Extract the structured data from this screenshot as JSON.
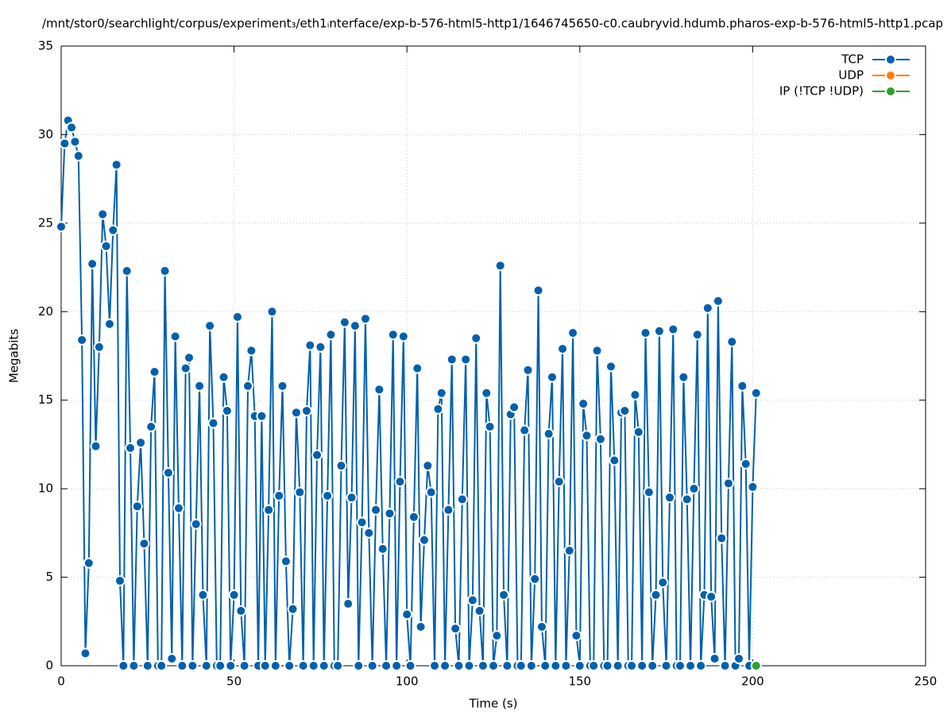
{
  "chart_data": {
    "type": "line",
    "title": "/mnt/stor0/searchlight/corpus/experiment₃/eth1ᵢnterface/exp-b-576-html5-http1/1646745650-c0.caubryvid.hdumb.pharos-exp-b-576-html5-http1.pcap",
    "x_label": "Time (s)",
    "y_label": "Megabits",
    "xlim": [
      0,
      250
    ],
    "xticks": [
      0,
      50,
      100,
      150,
      200,
      250
    ],
    "ylim": [
      0,
      35
    ],
    "yticks": [
      0,
      5,
      10,
      15,
      20,
      25,
      30,
      35
    ],
    "grid": true,
    "legend": "top-right",
    "series": [
      {
        "name": "TCP",
        "color": "#0060ad",
        "x": [
          0,
          1,
          2,
          3,
          4,
          5,
          6,
          7,
          8,
          9,
          10,
          11,
          12,
          13,
          14,
          15,
          16,
          17,
          18,
          19,
          20,
          21,
          22,
          23,
          24,
          25,
          26,
          27,
          28,
          29,
          30,
          31,
          32,
          33,
          34,
          35,
          36,
          37,
          38,
          39,
          40,
          41,
          42,
          43,
          44,
          45,
          46,
          47,
          48,
          49,
          50,
          51,
          52,
          53,
          54,
          55,
          56,
          57,
          58,
          59,
          60,
          61,
          62,
          63,
          64,
          65,
          66,
          67,
          68,
          69,
          70,
          71,
          72,
          73,
          74,
          75,
          76,
          77,
          78,
          79,
          80,
          81,
          82,
          83,
          84,
          85,
          86,
          87,
          88,
          89,
          90,
          91,
          92,
          93,
          94,
          95,
          96,
          97,
          98,
          99,
          100,
          101,
          102,
          103,
          104,
          105,
          106,
          107,
          108,
          109,
          110,
          111,
          112,
          113,
          114,
          115,
          116,
          117,
          118,
          119,
          120,
          121,
          122,
          123,
          124,
          125,
          126,
          127,
          128,
          129,
          130,
          131,
          132,
          133,
          134,
          135,
          136,
          137,
          138,
          139,
          140,
          141,
          142,
          143,
          144,
          145,
          146,
          147,
          148,
          149,
          150,
          151,
          152,
          153,
          154,
          155,
          156,
          157,
          158,
          159,
          160,
          161,
          162,
          163,
          164,
          165,
          166,
          167,
          168,
          169,
          170,
          171,
          172,
          173,
          174,
          175,
          176,
          177,
          178,
          179,
          180,
          181,
          182,
          183,
          184,
          185,
          186,
          187,
          188,
          189,
          190,
          191,
          192,
          193,
          194,
          195,
          196,
          197,
          198,
          199,
          200,
          201
        ],
        "values": [
          24.8,
          29.5,
          30.8,
          30.4,
          29.6,
          28.8,
          18.4,
          0.7,
          5.8,
          22.7,
          12.4,
          18.0,
          25.5,
          23.7,
          19.3,
          24.6,
          28.3,
          4.8,
          0,
          22.3,
          12.3,
          0,
          9.0,
          12.6,
          6.9,
          0,
          13.5,
          16.6,
          0,
          0,
          22.3,
          10.9,
          0.4,
          18.6,
          8.9,
          0,
          16.8,
          17.4,
          0,
          8.0,
          15.8,
          4.0,
          0,
          19.2,
          13.7,
          0,
          0,
          16.3,
          14.4,
          0,
          4.0,
          19.7,
          3.1,
          0,
          15.8,
          17.8,
          14.1,
          0,
          14.1,
          0,
          8.8,
          20.0,
          0,
          9.6,
          15.8,
          5.9,
          0,
          3.2,
          14.3,
          9.8,
          0,
          14.4,
          18.1,
          0,
          11.9,
          18.0,
          0,
          9.6,
          18.7,
          0,
          0,
          11.3,
          19.4,
          3.5,
          9.5,
          19.2,
          0,
          8.1,
          19.6,
          7.5,
          0,
          8.8,
          15.6,
          6.6,
          0,
          8.6,
          18.7,
          0,
          10.4,
          18.6,
          2.9,
          0,
          8.4,
          16.8,
          2.2,
          7.1,
          11.3,
          9.8,
          0,
          14.5,
          15.4,
          0,
          8.8,
          17.3,
          2.1,
          0,
          9.4,
          17.3,
          0,
          3.7,
          18.5,
          3.1,
          0,
          15.4,
          13.5,
          0,
          1.7,
          22.6,
          4.0,
          0,
          14.2,
          14.6,
          0,
          0,
          13.3,
          16.7,
          0,
          4.9,
          21.2,
          2.2,
          0,
          13.1,
          16.3,
          0,
          10.4,
          17.9,
          0,
          6.5,
          18.8,
          1.7,
          0,
          14.8,
          13.0,
          0,
          0,
          17.8,
          12.8,
          0,
          0,
          16.9,
          11.6,
          0,
          14.3,
          14.4,
          0,
          0,
          15.3,
          13.2,
          0,
          18.8,
          9.8,
          0,
          4.0,
          18.9,
          4.7,
          0,
          9.5,
          19.0,
          0,
          0,
          16.3,
          9.4,
          0,
          10.0,
          18.7,
          0,
          4.0,
          20.2,
          3.9,
          0.4,
          20.6,
          7.2,
          0,
          10.3,
          18.3,
          0,
          0.4,
          15.8,
          11.4,
          0,
          10.1,
          15.4
        ]
      },
      {
        "name": "UDP",
        "color": "#ff7f0e",
        "x": [],
        "values": []
      },
      {
        "name": "IP (!TCP  !UDP)",
        "color": "#2ca02c",
        "x": [
          201
        ],
        "values": [
          0
        ]
      }
    ]
  }
}
